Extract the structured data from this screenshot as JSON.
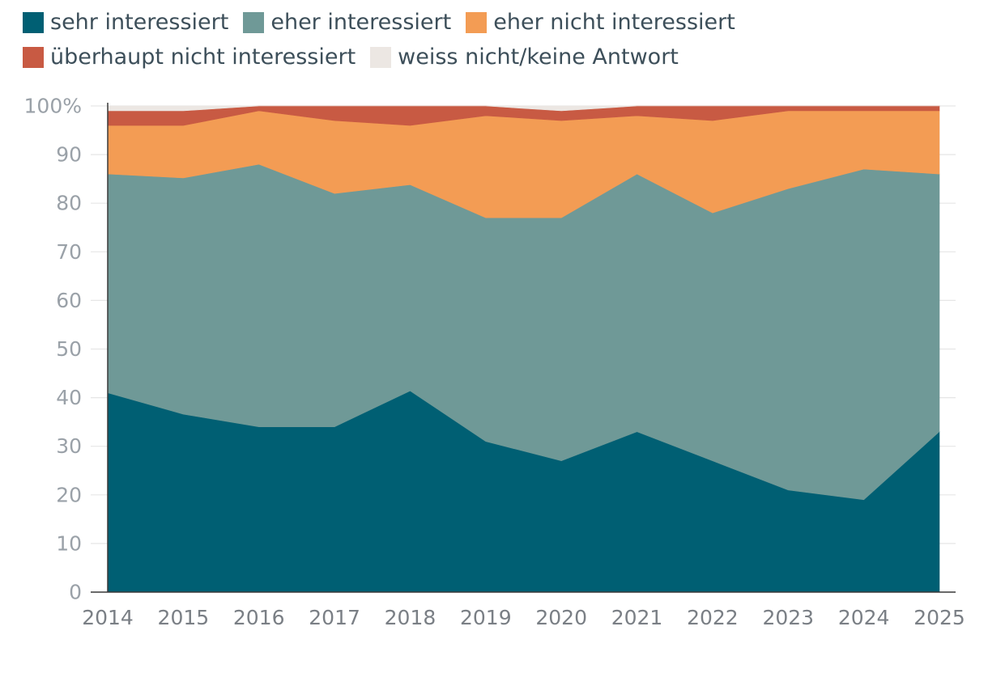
{
  "chart_data": {
    "type": "area",
    "stacked": true,
    "title": "",
    "xlabel": "",
    "ylabel": "",
    "x": [
      "2014",
      "2015",
      "2016",
      "2017",
      "2018",
      "2019",
      "2020",
      "2021",
      "2022",
      "2023",
      "2024",
      "2025"
    ],
    "ylim": [
      0,
      100
    ],
    "yticks": [
      "0",
      "10",
      "20",
      "30",
      "40",
      "50",
      "60",
      "70",
      "80",
      "90",
      "100%"
    ],
    "grid": true,
    "legend_position": "top",
    "series": [
      {
        "name": "sehr interessiert",
        "color": "#005f73",
        "values": [
          41,
          36.6,
          34,
          34,
          41.4,
          31,
          27,
          33,
          27,
          21,
          19,
          33
        ]
      },
      {
        "name": "eher interessiert",
        "color": "#6f9997",
        "values": [
          45,
          48.6,
          54,
          48,
          42.4,
          46,
          50,
          53,
          51,
          62,
          68,
          53
        ]
      },
      {
        "name": "eher nicht interessiert",
        "color": "#f39c54",
        "values": [
          10,
          10.8,
          11,
          15,
          12.2,
          21,
          20,
          12,
          19,
          16,
          12,
          13
        ]
      },
      {
        "name": "überhaupt nicht interessiert",
        "color": "#c85a43",
        "values": [
          3,
          3,
          1,
          3,
          4,
          2,
          2,
          2,
          3,
          1,
          1,
          1
        ]
      },
      {
        "name": "weiss nicht/keine Antwort",
        "color": "#ece7e3",
        "values": [
          1,
          1,
          0,
          0,
          0,
          0,
          1,
          0,
          0,
          0,
          0,
          0
        ]
      }
    ]
  }
}
